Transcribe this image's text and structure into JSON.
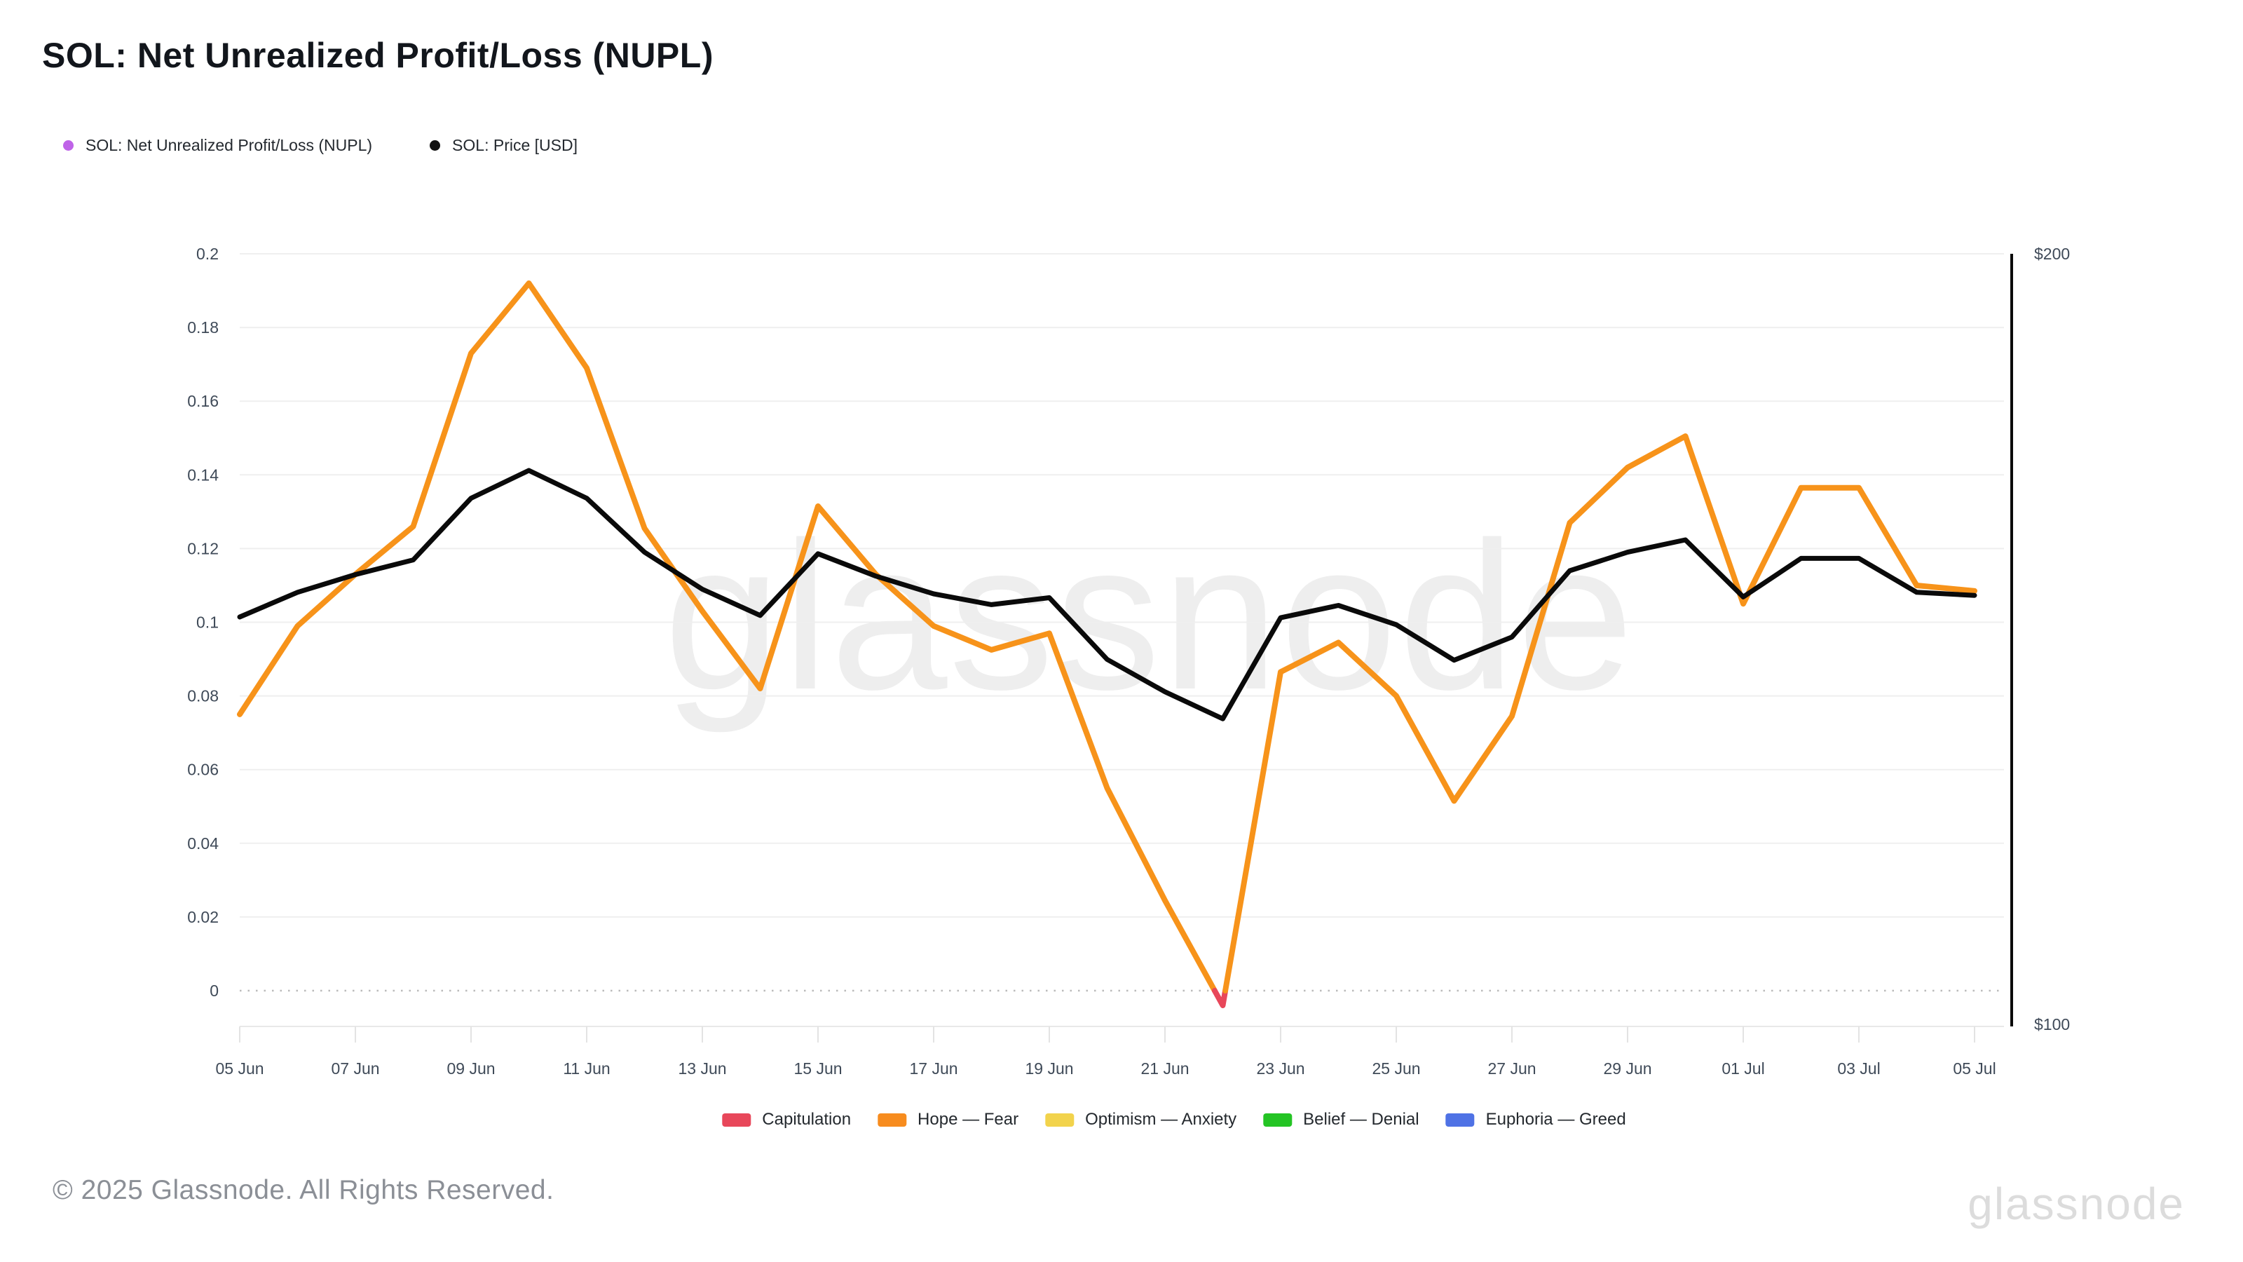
{
  "title": "SOL: Net Unrealized Profit/Loss (NUPL)",
  "top_legend": [
    {
      "label": "SOL: Net Unrealized Profit/Loss (NUPL)",
      "marker_color": "#bf63e8"
    },
    {
      "label": "SOL: Price [USD]",
      "marker_color": "#111111"
    }
  ],
  "chart_data": {
    "type": "line",
    "title": "SOL: Net Unrealized Profit/Loss (NUPL)",
    "xlabel": "",
    "ylabel": "",
    "grid": true,
    "legend_position": "bottom",
    "x_dates": [
      "05 Jun",
      "06 Jun",
      "07 Jun",
      "08 Jun",
      "09 Jun",
      "10 Jun",
      "11 Jun",
      "12 Jun",
      "13 Jun",
      "14 Jun",
      "15 Jun",
      "16 Jun",
      "17 Jun",
      "18 Jun",
      "19 Jun",
      "20 Jun",
      "21 Jun",
      "22 Jun",
      "23 Jun",
      "24 Jun",
      "25 Jun",
      "26 Jun",
      "27 Jun",
      "28 Jun",
      "29 Jun",
      "30 Jun",
      "01 Jul",
      "02 Jul",
      "03 Jul",
      "04 Jul",
      "05 Jul"
    ],
    "x_tick_labels": [
      "05 Jun",
      "07 Jun",
      "09 Jun",
      "11 Jun",
      "13 Jun",
      "15 Jun",
      "17 Jun",
      "19 Jun",
      "21 Jun",
      "23 Jun",
      "25 Jun",
      "27 Jun",
      "29 Jun",
      "01 Jul",
      "03 Jul",
      "05 Jul"
    ],
    "series": [
      {
        "name": "SOL: Net Unrealized Profit/Loss (NUPL)",
        "axis": "left",
        "color": "#f7931a",
        "below_zero_color": "#e8475a",
        "values": [
          0.075,
          0.099,
          0.113,
          0.126,
          0.173,
          0.192,
          0.169,
          0.1255,
          0.103,
          0.082,
          0.1315,
          0.113,
          0.099,
          0.0925,
          0.097,
          0.055,
          0.0245,
          -0.004,
          0.0865,
          0.0945,
          0.08,
          0.0515,
          0.0745,
          0.127,
          0.142,
          0.1505,
          0.105,
          0.1365,
          0.1365,
          0.11,
          0.1085
        ]
      },
      {
        "name": "SOL: Price [USD]",
        "axis": "right",
        "color": "#0a0a0a",
        "values": [
          153.0,
          156.2,
          158.5,
          160.4,
          168.4,
          172.0,
          168.4,
          161.4,
          156.6,
          153.2,
          161.2,
          158.3,
          156.0,
          154.6,
          155.5,
          147.5,
          143.3,
          139.8,
          152.9,
          154.5,
          152.0,
          147.4,
          150.4,
          159.0,
          161.4,
          163.0,
          155.6,
          160.6,
          160.6,
          156.2,
          155.8
        ]
      }
    ],
    "y_axis": {
      "range": [
        0,
        0.2
      ],
      "ticks": [
        {
          "label": "0.2",
          "value": 0.2
        },
        {
          "label": "0.18",
          "value": 0.18
        },
        {
          "label": "0.16",
          "value": 0.16
        },
        {
          "label": "0.14",
          "value": 0.14
        },
        {
          "label": "0.12",
          "value": 0.12
        },
        {
          "label": "0.1",
          "value": 0.1
        },
        {
          "label": "0.08",
          "value": 0.08
        },
        {
          "label": "0.06",
          "value": 0.06
        },
        {
          "label": "0.04",
          "value": 0.04
        },
        {
          "label": "0.02",
          "value": 0.02
        },
        {
          "label": "0",
          "value": 0
        }
      ],
      "zero_line_style": "dotted"
    },
    "y2_axis": {
      "range": [
        100,
        200
      ],
      "top_label": "$200",
      "bottom_label": "$100"
    }
  },
  "band_legend": [
    {
      "label": "Capitulation",
      "color": "#e8475a"
    },
    {
      "label": "Hope — Fear",
      "color": "#f78c1e"
    },
    {
      "label": "Optimism — Anxiety",
      "color": "#f2d34c"
    },
    {
      "label": "Belief — Denial",
      "color": "#24c424"
    },
    {
      "label": "Euphoria — Greed",
      "color": "#4f72e5"
    }
  ],
  "footer": {
    "copyright": "© 2025 Glassnode. All Rights Reserved."
  },
  "watermark": {
    "center": "glassnode",
    "logo": "glassnode"
  }
}
